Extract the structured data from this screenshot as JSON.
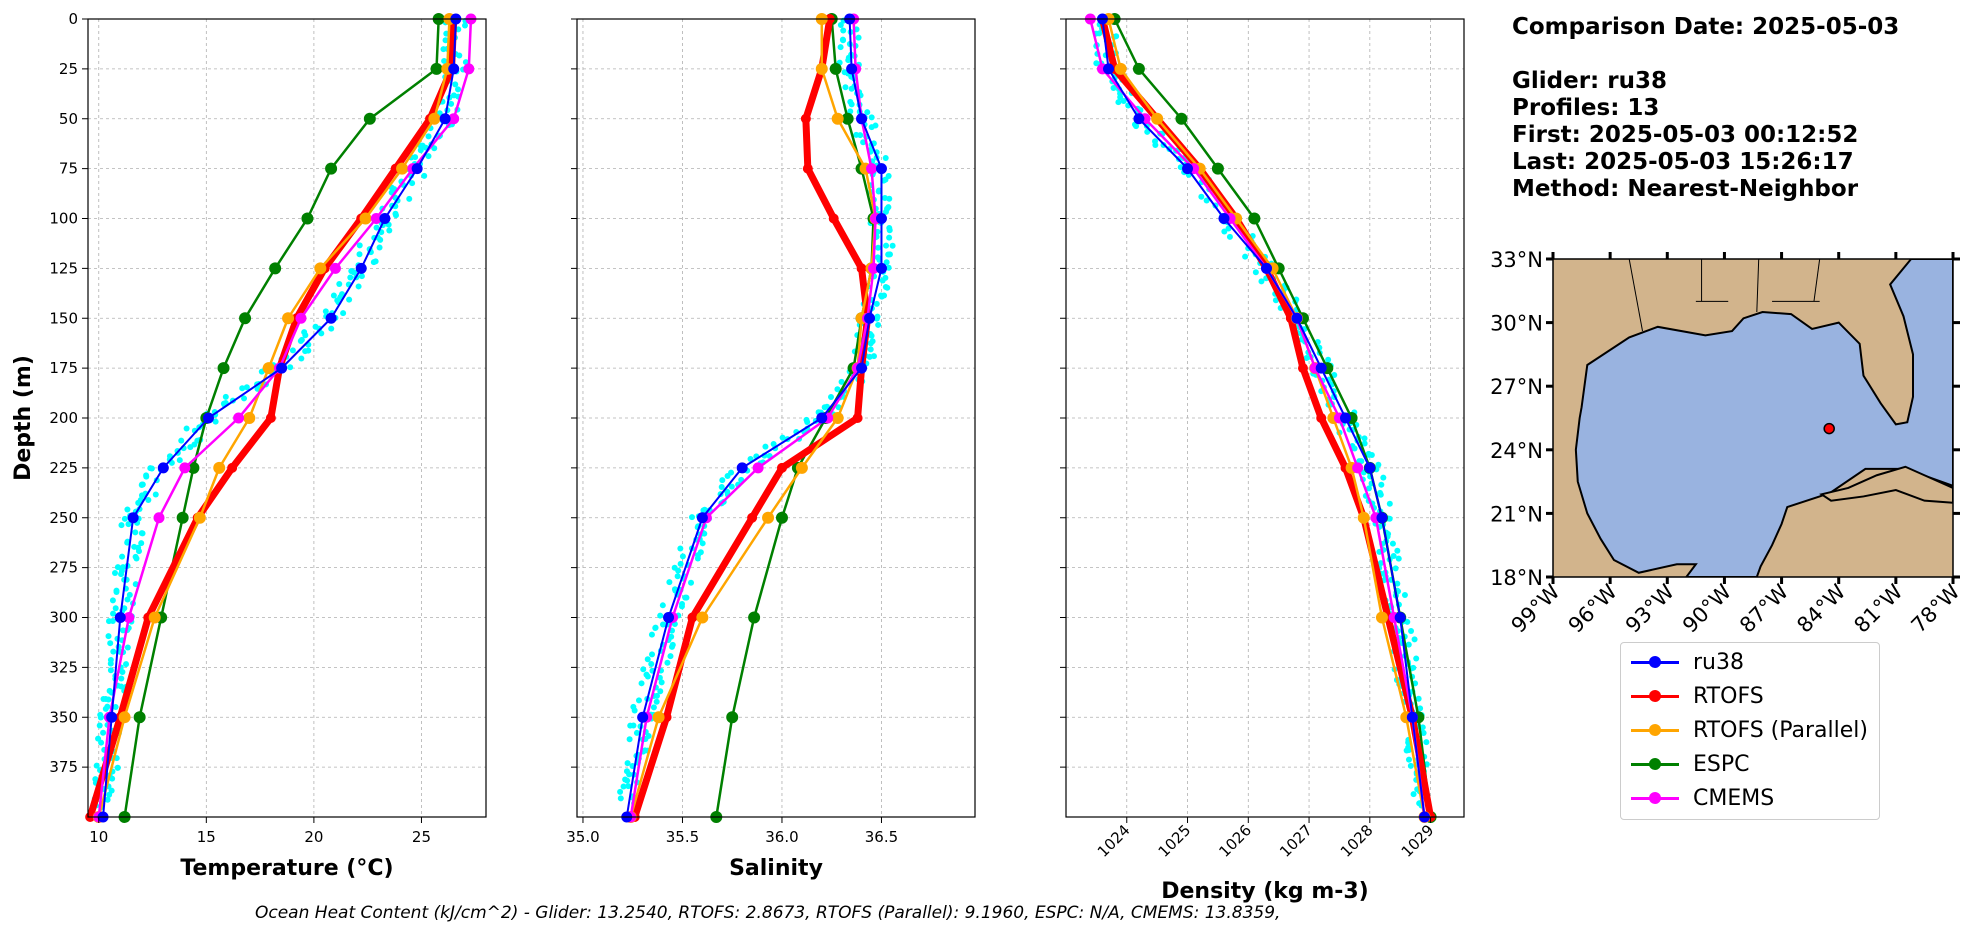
{
  "info": {
    "comparison_date": "Comparison Date: 2025-05-03",
    "glider": "Glider: ru38",
    "profiles": "Profiles: 13",
    "first": "First: 2025-05-03 00:12:52",
    "last": "Last: 2025-05-03 15:26:17",
    "method": "Method: Nearest-Neighbor"
  },
  "legend": [
    {
      "name": "ru38",
      "color": "#0000ff"
    },
    {
      "name": "RTOFS",
      "color": "#ff0000"
    },
    {
      "name": "RTOFS (Parallel)",
      "color": "#ffa500"
    },
    {
      "name": "ESPC",
      "color": "#008000"
    },
    {
      "name": "CMEMS",
      "color": "#ff00ff"
    }
  ],
  "footer": "Ocean Heat Content (kJ/cm^2) - Glider: 13.2540,  RTOFS: 2.8673,  RTOFS (Parallel): 9.1960,  ESPC: N/A,  CMEMS: 13.8359,",
  "colors": {
    "glider_scatter": "#00ffff",
    "land": "#d2b48c",
    "water": "#99b3e0",
    "grid": "#b0b0b0"
  },
  "chart_data": [
    {
      "type": "line",
      "xlabel": "Temperature (°C)",
      "ylabel": "Depth (m)",
      "xlim": [
        9.5,
        28
      ],
      "ylim": [
        400,
        0
      ],
      "xticks": [
        10,
        15,
        20,
        25
      ],
      "yticks": [
        0,
        25,
        50,
        75,
        100,
        125,
        150,
        175,
        200,
        225,
        250,
        275,
        300,
        325,
        350,
        375
      ],
      "grid": true,
      "series": [
        {
          "name": "ru38",
          "x": [
            26.6,
            26.5,
            26.1,
            24.8,
            23.3,
            22.2,
            20.8,
            18.5,
            15.1,
            13.0,
            11.6,
            11.0,
            10.6,
            10.2
          ],
          "y": [
            0,
            25,
            50,
            75,
            100,
            125,
            150,
            175,
            200,
            225,
            250,
            300,
            350,
            400
          ]
        },
        {
          "name": "RTOFS",
          "x": [
            26.5,
            26.4,
            25.4,
            23.8,
            22.2,
            20.5,
            19.2,
            18.4,
            18.0,
            16.2,
            14.6,
            12.3,
            11.0,
            9.6
          ],
          "y": [
            0,
            25,
            50,
            75,
            100,
            125,
            150,
            175,
            200,
            225,
            250,
            300,
            350,
            400
          ]
        },
        {
          "name": "RTOFS (Parallel)",
          "x": [
            26.3,
            26.2,
            25.6,
            24.1,
            22.4,
            20.3,
            18.8,
            17.9,
            17.0,
            15.6,
            14.7,
            12.6,
            11.2,
            10.0
          ],
          "y": [
            0,
            25,
            50,
            75,
            100,
            125,
            150,
            175,
            200,
            225,
            250,
            300,
            350,
            400
          ]
        },
        {
          "name": "ESPC",
          "x": [
            25.8,
            25.7,
            22.6,
            20.8,
            19.7,
            18.2,
            16.8,
            15.8,
            15.0,
            14.4,
            13.9,
            12.9,
            11.9,
            11.2
          ],
          "y": [
            0,
            25,
            50,
            75,
            100,
            125,
            150,
            175,
            200,
            225,
            250,
            300,
            350,
            400
          ]
        },
        {
          "name": "CMEMS",
          "x": [
            27.3,
            27.2,
            26.5,
            24.6,
            22.9,
            21.0,
            19.4,
            18.4,
            16.5,
            14.0,
            12.8,
            11.4,
            10.5,
            10.0
          ],
          "y": [
            0,
            25,
            50,
            75,
            100,
            125,
            150,
            175,
            200,
            225,
            250,
            300,
            350,
            400
          ]
        }
      ]
    },
    {
      "type": "line",
      "xlabel": "Salinity",
      "xlim": [
        34.97,
        36.97
      ],
      "ylim": [
        400,
        0
      ],
      "xticks": [
        35.0,
        35.5,
        36.0,
        36.5
      ],
      "grid": true,
      "series": [
        {
          "name": "ru38",
          "x": [
            36.34,
            36.35,
            36.4,
            36.5,
            36.5,
            36.5,
            36.44,
            36.4,
            36.2,
            35.8,
            35.6,
            35.43,
            35.3,
            35.22
          ],
          "y": [
            0,
            25,
            50,
            75,
            100,
            125,
            150,
            175,
            200,
            225,
            250,
            300,
            350,
            400
          ]
        },
        {
          "name": "RTOFS",
          "x": [
            36.24,
            36.2,
            36.12,
            36.13,
            36.26,
            36.4,
            36.43,
            36.4,
            36.38,
            36.0,
            35.85,
            35.55,
            35.42,
            35.26
          ],
          "y": [
            0,
            25,
            50,
            75,
            100,
            125,
            150,
            175,
            200,
            225,
            250,
            300,
            350,
            400
          ]
        },
        {
          "name": "RTOFS (Parallel)",
          "x": [
            36.2,
            36.2,
            36.28,
            36.42,
            36.47,
            36.45,
            36.4,
            36.38,
            36.28,
            36.1,
            35.93,
            35.6,
            35.38,
            35.24
          ],
          "y": [
            0,
            25,
            50,
            75,
            100,
            125,
            150,
            175,
            200,
            225,
            250,
            300,
            350,
            400
          ]
        },
        {
          "name": "ESPC",
          "x": [
            36.25,
            36.27,
            36.33,
            36.4,
            36.46,
            36.45,
            36.4,
            36.36,
            36.22,
            36.08,
            36.0,
            35.86,
            35.75,
            35.67
          ],
          "y": [
            0,
            25,
            50,
            75,
            100,
            125,
            150,
            175,
            200,
            225,
            250,
            300,
            350,
            400
          ]
        },
        {
          "name": "CMEMS",
          "x": [
            36.36,
            36.37,
            36.4,
            36.45,
            36.47,
            36.46,
            36.43,
            36.38,
            36.23,
            35.88,
            35.62,
            35.45,
            35.32,
            35.24
          ],
          "y": [
            0,
            25,
            50,
            75,
            100,
            125,
            150,
            175,
            200,
            225,
            250,
            300,
            350,
            400
          ]
        }
      ]
    },
    {
      "type": "line",
      "xlabel": "Density (kg m-3)",
      "xlim": [
        1023.0,
        1029.55
      ],
      "ylim": [
        400,
        0
      ],
      "xticks": [
        1024,
        1025,
        1026,
        1027,
        1028,
        1029
      ],
      "grid": true,
      "series": [
        {
          "name": "ru38",
          "x": [
            1023.6,
            1023.7,
            1024.2,
            1025.0,
            1025.6,
            1026.3,
            1026.8,
            1027.2,
            1027.6,
            1028.0,
            1028.2,
            1028.5,
            1028.7,
            1028.9
          ],
          "y": [
            0,
            25,
            50,
            75,
            100,
            125,
            150,
            175,
            200,
            225,
            250,
            300,
            350,
            400
          ]
        },
        {
          "name": "RTOFS",
          "x": [
            1023.6,
            1023.8,
            1024.5,
            1025.2,
            1025.8,
            1026.3,
            1026.7,
            1026.9,
            1027.2,
            1027.6,
            1027.9,
            1028.3,
            1028.7,
            1029.0
          ],
          "y": [
            0,
            25,
            50,
            75,
            100,
            125,
            150,
            175,
            200,
            225,
            250,
            300,
            350,
            400
          ]
        },
        {
          "name": "RTOFS (Parallel)",
          "x": [
            1023.7,
            1023.9,
            1024.5,
            1025.2,
            1025.8,
            1026.4,
            1026.8,
            1027.1,
            1027.4,
            1027.7,
            1027.9,
            1028.2,
            1028.6,
            1028.9
          ],
          "y": [
            0,
            25,
            50,
            75,
            100,
            125,
            150,
            175,
            200,
            225,
            250,
            300,
            350,
            400
          ]
        },
        {
          "name": "ESPC",
          "x": [
            1023.8,
            1024.2,
            1024.9,
            1025.5,
            1026.1,
            1026.5,
            1026.9,
            1027.3,
            1027.7,
            1028.0,
            1028.2,
            1028.5,
            1028.8,
            1029.0
          ],
          "y": [
            0,
            25,
            50,
            75,
            100,
            125,
            150,
            175,
            200,
            225,
            250,
            300,
            350,
            400
          ]
        },
        {
          "name": "CMEMS",
          "x": [
            1023.4,
            1023.6,
            1024.3,
            1025.1,
            1025.7,
            1026.3,
            1026.8,
            1027.1,
            1027.5,
            1027.8,
            1028.1,
            1028.4,
            1028.7,
            1028.9
          ],
          "y": [
            0,
            25,
            50,
            75,
            100,
            125,
            150,
            175,
            200,
            225,
            250,
            300,
            350,
            400
          ]
        }
      ]
    }
  ],
  "map": {
    "lon_ticks": [
      "99°W",
      "96°W",
      "93°W",
      "90°W",
      "87°W",
      "84°W",
      "81°W",
      "78°W"
    ],
    "lat_ticks": [
      "33°N",
      "30°N",
      "27°N",
      "24°N",
      "21°N",
      "18°N"
    ],
    "lon_range": [
      -99,
      -78
    ],
    "lat_range": [
      18,
      33
    ],
    "glider_position": {
      "lon": -84.5,
      "lat": 25.0
    }
  }
}
